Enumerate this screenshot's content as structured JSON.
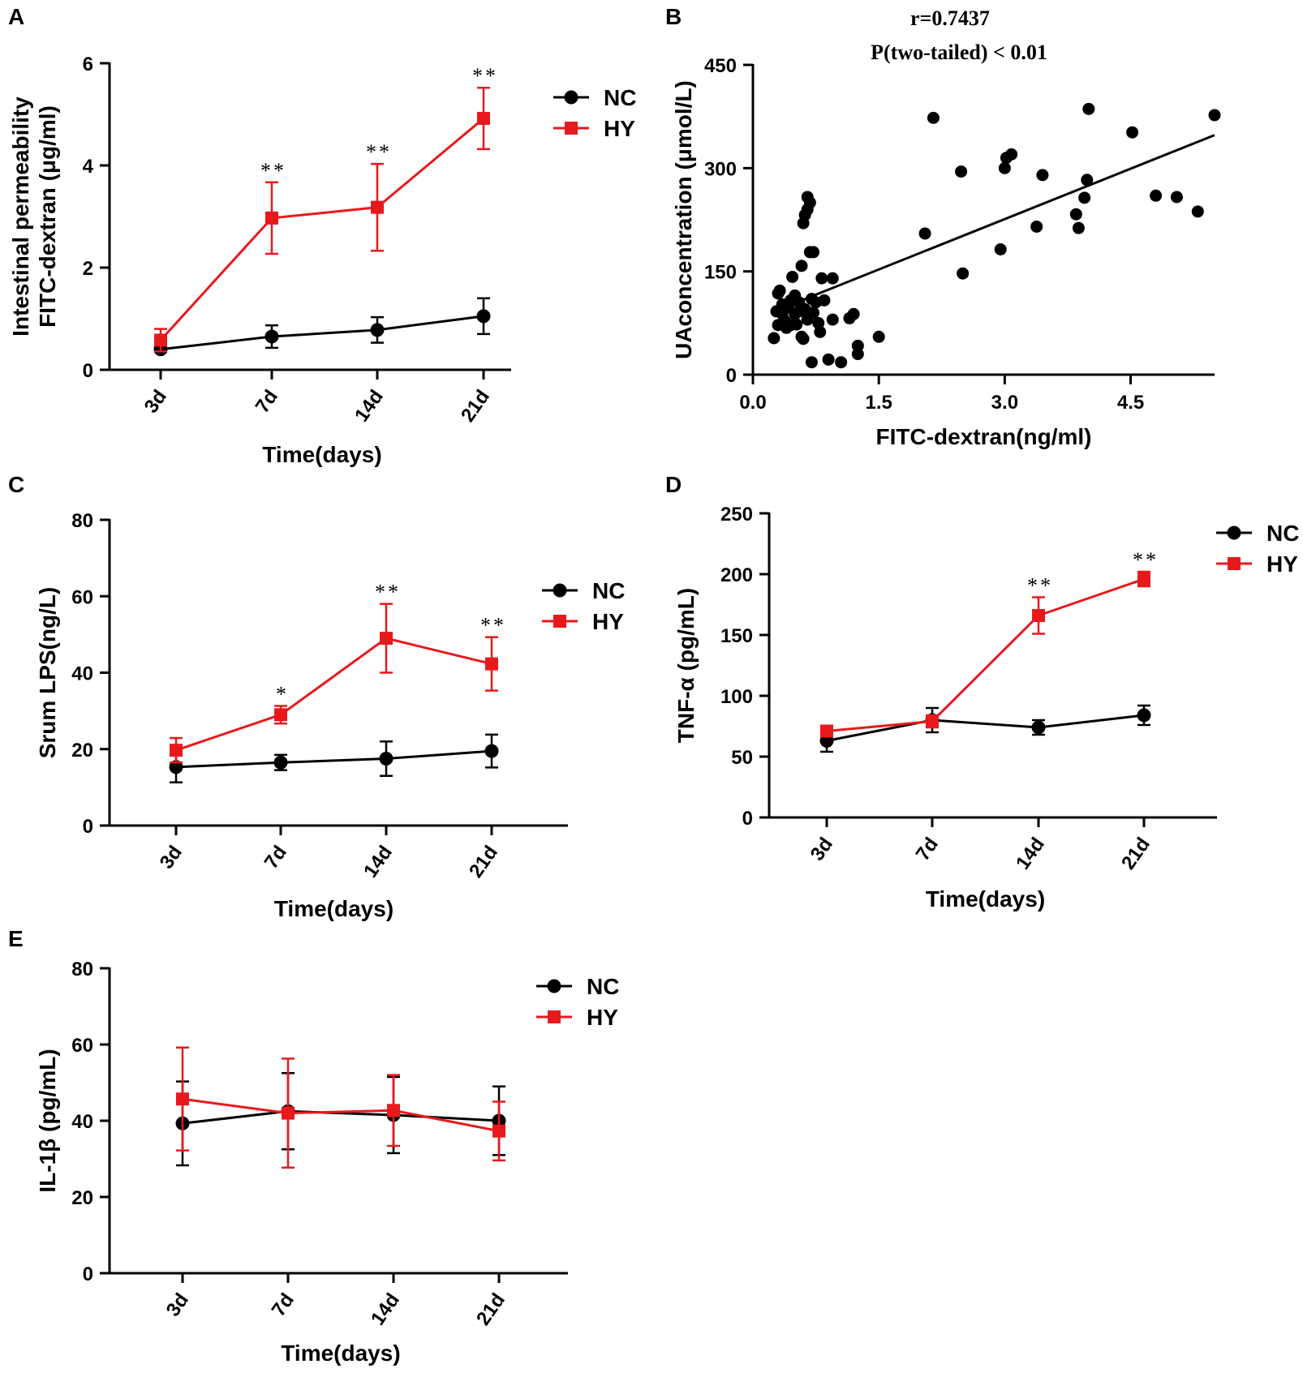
{
  "figure": {
    "colors": {
      "NC": "#000000",
      "HY": "#e8191c",
      "axis": "#000000"
    }
  },
  "chart_data": [
    {
      "panel": "A",
      "type": "line",
      "xlabel": "Time(days)",
      "ylabel": [
        "Intestinal permeability",
        "FITC-dextran (μg/ml)"
      ],
      "categories": [
        "3d",
        "7d",
        "14d",
        "21d"
      ],
      "ylim": [
        0,
        6
      ],
      "yticks": [
        0,
        2,
        4,
        6
      ],
      "legend": "top-right",
      "series": [
        {
          "name": "NC",
          "marker": "circle",
          "values": [
            0.4,
            0.65,
            0.78,
            1.05
          ],
          "errors": [
            0.05,
            0.22,
            0.25,
            0.35
          ]
        },
        {
          "name": "HY",
          "marker": "square",
          "values": [
            0.58,
            2.97,
            3.18,
            4.92
          ],
          "errors": [
            0.22,
            0.7,
            0.85,
            0.6
          ]
        }
      ],
      "significance": [
        "",
        "**",
        "**",
        "**"
      ]
    },
    {
      "panel": "B",
      "type": "scatter",
      "xlabel": "FITC-dextran(ng/ml)",
      "ylabel": "UAconcentration  (μmol/L)",
      "xlim": [
        0,
        5.5
      ],
      "ylim": [
        0,
        450
      ],
      "xticks": [
        "0.0",
        "1.5",
        "3.0",
        "4.5"
      ],
      "xtick_values": [
        0,
        1.5,
        3,
        4.5
      ],
      "yticks": [
        0,
        150,
        300,
        450
      ],
      "annotations": [
        "r=0.7437",
        "P(two-tailed) < 0.01"
      ],
      "regression": {
        "x": [
          0.5,
          5.5
        ],
        "y": [
          104,
          348
        ]
      },
      "points": [
        [
          0.25,
          53
        ],
        [
          0.3,
          118
        ],
        [
          0.32,
          122
        ],
        [
          0.28,
          92
        ],
        [
          0.3,
          72
        ],
        [
          0.35,
          88
        ],
        [
          0.35,
          102
        ],
        [
          0.38,
          78
        ],
        [
          0.4,
          68
        ],
        [
          0.42,
          98
        ],
        [
          0.45,
          108
        ],
        [
          0.45,
          72
        ],
        [
          0.47,
          142
        ],
        [
          0.5,
          115
        ],
        [
          0.5,
          88
        ],
        [
          0.52,
          73
        ],
        [
          0.55,
          105
        ],
        [
          0.55,
          92
        ],
        [
          0.58,
          55
        ],
        [
          0.58,
          158
        ],
        [
          0.6,
          220
        ],
        [
          0.6,
          52
        ],
        [
          0.62,
          232
        ],
        [
          0.62,
          95
        ],
        [
          0.65,
          240
        ],
        [
          0.65,
          258
        ],
        [
          0.65,
          80
        ],
        [
          0.68,
          250
        ],
        [
          0.68,
          178
        ],
        [
          0.7,
          110
        ],
        [
          0.7,
          18
        ],
        [
          0.72,
          178
        ],
        [
          0.72,
          90
        ],
        [
          0.75,
          105
        ],
        [
          0.78,
          75
        ],
        [
          0.8,
          62
        ],
        [
          0.82,
          140
        ],
        [
          0.85,
          108
        ],
        [
          0.9,
          22
        ],
        [
          0.95,
          80
        ],
        [
          0.95,
          140
        ],
        [
          1.05,
          18
        ],
        [
          1.15,
          82
        ],
        [
          1.2,
          88
        ],
        [
          1.25,
          42
        ],
        [
          1.25,
          30
        ],
        [
          1.5,
          55
        ],
        [
          2.05,
          205
        ],
        [
          2.15,
          373
        ],
        [
          2.48,
          295
        ],
        [
          2.5,
          147
        ],
        [
          2.95,
          182
        ],
        [
          3.0,
          300
        ],
        [
          3.02,
          315
        ],
        [
          3.08,
          320
        ],
        [
          3.38,
          215
        ],
        [
          3.45,
          290
        ],
        [
          3.85,
          233
        ],
        [
          3.88,
          213
        ],
        [
          3.95,
          257
        ],
        [
          3.98,
          283
        ],
        [
          4.0,
          386
        ],
        [
          4.52,
          352
        ],
        [
          4.8,
          260
        ],
        [
          5.05,
          258
        ],
        [
          5.3,
          237
        ],
        [
          5.5,
          377
        ]
      ]
    },
    {
      "panel": "C",
      "type": "line",
      "xlabel": "Time(days)",
      "ylabel": "Srum LPS(ng/L)",
      "categories": [
        "3d",
        "7d",
        "14d",
        "21d"
      ],
      "ylim": [
        0,
        80
      ],
      "yticks": [
        0,
        20,
        40,
        60,
        80
      ],
      "legend": "top-right",
      "series": [
        {
          "name": "NC",
          "marker": "circle",
          "values": [
            15.3,
            16.5,
            17.5,
            19.5
          ],
          "errors": [
            4.0,
            2.0,
            4.5,
            4.3
          ]
        },
        {
          "name": "HY",
          "marker": "square",
          "values": [
            19.7,
            29.0,
            49.0,
            42.3
          ],
          "errors": [
            3.2,
            2.3,
            9.0,
            7.0
          ]
        }
      ],
      "significance": [
        "",
        "*",
        "**",
        "**"
      ]
    },
    {
      "panel": "D",
      "type": "line",
      "xlabel": "Time(days)",
      "ylabel": "TNF-α  (pg/mL)",
      "categories": [
        "3d",
        "7d",
        "14d",
        "21d"
      ],
      "ylim": [
        0,
        250
      ],
      "yticks": [
        0,
        50,
        100,
        150,
        200,
        250
      ],
      "legend": "top-right",
      "series": [
        {
          "name": "NC",
          "marker": "circle",
          "values": [
            63,
            80,
            74,
            84
          ],
          "errors": [
            9,
            10,
            6,
            8
          ]
        },
        {
          "name": "HY",
          "marker": "square",
          "values": [
            71,
            79,
            166,
            196
          ],
          "errors": [
            3,
            5,
            15,
            6
          ]
        }
      ],
      "significance": [
        "",
        "",
        "**",
        "**"
      ]
    },
    {
      "panel": "E",
      "type": "line",
      "xlabel": "Time(days)",
      "ylabel": "IL-1β  (pg/mL)",
      "categories": [
        "3d",
        "7d",
        "14d",
        "21d"
      ],
      "ylim": [
        0,
        80
      ],
      "yticks": [
        0,
        20,
        40,
        60,
        80
      ],
      "legend": "top-right",
      "series": [
        {
          "name": "NC",
          "marker": "circle",
          "values": [
            39.3,
            42.5,
            41.5,
            40.0
          ],
          "errors": [
            11,
            10,
            10,
            9
          ]
        },
        {
          "name": "HY",
          "marker": "square",
          "values": [
            45.7,
            42.0,
            42.7,
            37.3
          ],
          "errors": [
            13.5,
            14.3,
            9.3,
            7.7
          ]
        }
      ],
      "significance": [
        "",
        "",
        "",
        ""
      ]
    }
  ]
}
